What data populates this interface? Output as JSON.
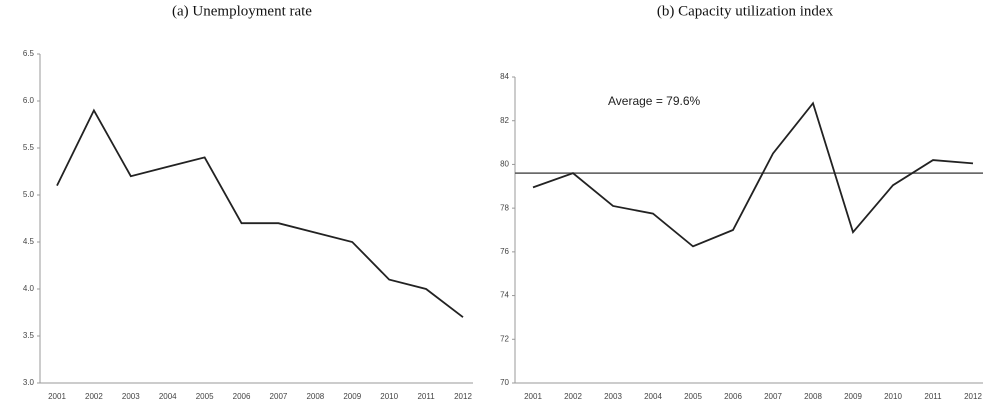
{
  "chart_data": [
    {
      "type": "line",
      "title": "(a) Unemployment rate",
      "categories": [
        "2001",
        "2002",
        "2003",
        "2004",
        "2005",
        "2006",
        "2007",
        "2008",
        "2009",
        "2010",
        "2011",
        "2012"
      ],
      "values": [
        5.1,
        5.9,
        5.2,
        5.3,
        5.4,
        4.7,
        4.7,
        4.6,
        4.5,
        4.1,
        4.0,
        3.7
      ],
      "color": "#222222",
      "ylim": [
        3.0,
        6.5
      ],
      "yticks": [
        {
          "value": 3,
          "label": "3.0"
        },
        3.5,
        {
          "value": 4,
          "label": "4.0"
        },
        4.5,
        {
          "value": 5,
          "label": "5.0"
        },
        5.5,
        {
          "value": 6,
          "label": "6.0"
        },
        6.5
      ],
      "grid": false
    },
    {
      "type": "line",
      "title": "(b) Capacity utilization index",
      "categories": [
        "2001",
        "2002",
        "2003",
        "2004",
        "2005",
        "2006",
        "2007",
        "2008",
        "2009",
        "2010",
        "2011",
        "2012"
      ],
      "values": [
        78.95,
        79.6,
        78.1,
        77.75,
        76.25,
        77.0,
        80.5,
        82.8,
        76.9,
        79.05,
        80.2,
        80.05
      ],
      "color": "#222222",
      "ylim": [
        70,
        84
      ],
      "yticks": [
        70,
        72,
        74,
        76,
        78,
        80,
        82,
        84
      ],
      "grid": false,
      "average": {
        "value": 79.6,
        "label": "Average = 79.6%"
      }
    }
  ]
}
